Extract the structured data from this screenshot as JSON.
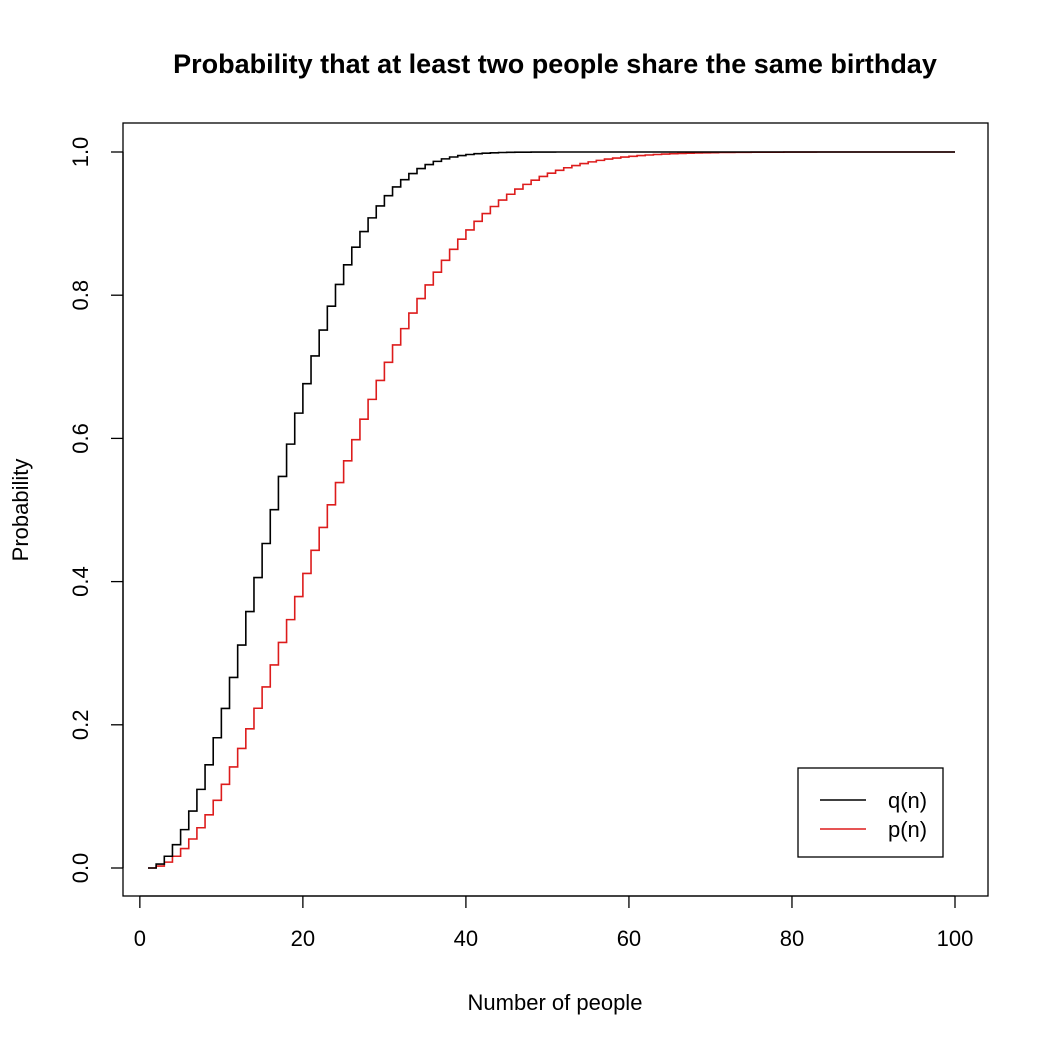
{
  "chart_data": {
    "type": "line",
    "step": true,
    "title": "Probability that at least two people share the same birthday",
    "xlabel": "Number of people",
    "ylabel": "Probability",
    "xlim": [
      1,
      100
    ],
    "ylim": [
      0,
      1
    ],
    "xticks": [
      0,
      20,
      40,
      60,
      80,
      100
    ],
    "xtick_labels": [
      "0",
      "20",
      "40",
      "60",
      "80",
      "100"
    ],
    "yticks": [
      0,
      0.2,
      0.4,
      0.6,
      0.8,
      1.0
    ],
    "ytick_labels": [
      "0.0",
      "0.2",
      "0.4",
      "0.6",
      "0.8",
      "1.0"
    ],
    "grid": false,
    "legend_position": "bottom-right",
    "colors": {
      "q": "#000000",
      "p": "#dd1c1c"
    },
    "x": [
      1,
      2,
      3,
      4,
      5,
      6,
      7,
      8,
      9,
      10,
      11,
      12,
      13,
      14,
      15,
      16,
      17,
      18,
      19,
      20,
      21,
      22,
      23,
      24,
      25,
      26,
      27,
      28,
      29,
      30,
      31,
      32,
      33,
      34,
      35,
      36,
      37,
      38,
      39,
      40,
      41,
      42,
      43,
      44,
      45,
      46,
      47,
      48,
      49,
      50,
      51,
      52,
      53,
      54,
      55,
      56,
      57,
      58,
      59,
      60,
      61,
      62,
      63,
      64,
      65,
      66,
      67,
      68,
      69,
      70,
      71,
      72,
      73,
      74,
      75,
      76,
      77,
      78,
      79,
      80,
      81,
      82,
      83,
      84,
      85,
      86,
      87,
      88,
      89,
      90,
      91,
      92,
      93,
      94,
      95,
      96,
      97,
      98,
      99,
      100
    ],
    "series": [
      {
        "name": "q(n)",
        "values": [
          0.0,
          0.0055,
          0.0164,
          0.0325,
          0.0536,
          0.0795,
          0.1098,
          0.1441,
          0.1819,
          0.2228,
          0.2661,
          0.3114,
          0.3581,
          0.4056,
          0.4532,
          0.5005,
          0.5469,
          0.592,
          0.6353,
          0.6764,
          0.7152,
          0.7513,
          0.7846,
          0.815,
          0.8425,
          0.8671,
          0.8889,
          0.908,
          0.9247,
          0.939,
          0.9512,
          0.9614,
          0.9699,
          0.9769,
          0.9825,
          0.9869,
          0.9904,
          0.993,
          0.995,
          0.9965,
          0.9976,
          0.9983,
          0.9989,
          0.9993,
          0.9995,
          0.9997,
          0.9998,
          0.9999,
          0.9999,
          0.9999,
          1.0,
          1.0,
          1.0,
          1.0,
          1.0,
          1.0,
          1.0,
          1.0,
          1.0,
          1.0,
          1.0,
          1.0,
          1.0,
          1.0,
          1.0,
          1.0,
          1.0,
          1.0,
          1.0,
          1.0,
          1.0,
          1.0,
          1.0,
          1.0,
          1.0,
          1.0,
          1.0,
          1.0,
          1.0,
          1.0,
          1.0,
          1.0,
          1.0,
          1.0,
          1.0,
          1.0,
          1.0,
          1.0,
          1.0,
          1.0,
          1.0,
          1.0,
          1.0,
          1.0,
          1.0,
          1.0,
          1.0,
          1.0,
          1.0,
          1.0
        ]
      },
      {
        "name": "p(n)",
        "values": [
          0.0,
          0.0027,
          0.0082,
          0.0164,
          0.0271,
          0.0405,
          0.0562,
          0.0743,
          0.0946,
          0.1169,
          0.1411,
          0.167,
          0.1944,
          0.2231,
          0.2529,
          0.2836,
          0.315,
          0.3469,
          0.3791,
          0.4114,
          0.4437,
          0.4757,
          0.5073,
          0.5383,
          0.5687,
          0.5982,
          0.6269,
          0.6545,
          0.681,
          0.7063,
          0.7305,
          0.7533,
          0.775,
          0.7953,
          0.8144,
          0.8322,
          0.8487,
          0.8641,
          0.8782,
          0.8912,
          0.9032,
          0.914,
          0.9239,
          0.9329,
          0.941,
          0.9483,
          0.9548,
          0.9606,
          0.9658,
          0.9704,
          0.9744,
          0.978,
          0.9811,
          0.9838,
          0.9862,
          0.9883,
          0.9901,
          0.9916,
          0.9929,
          0.994,
          0.995,
          0.9958,
          0.9965,
          0.9971,
          0.9976,
          0.998,
          0.9984,
          0.9987,
          0.9989,
          0.9991,
          0.9993,
          0.9994,
          0.9995,
          0.9996,
          0.9997,
          0.9998,
          0.9998,
          0.9998,
          0.9999,
          0.9999,
          0.9999,
          0.9999,
          1.0,
          1.0,
          1.0,
          1.0,
          1.0,
          1.0,
          1.0,
          1.0,
          1.0,
          1.0,
          1.0,
          1.0,
          1.0,
          1.0,
          1.0,
          1.0,
          1.0,
          1.0
        ]
      }
    ]
  }
}
